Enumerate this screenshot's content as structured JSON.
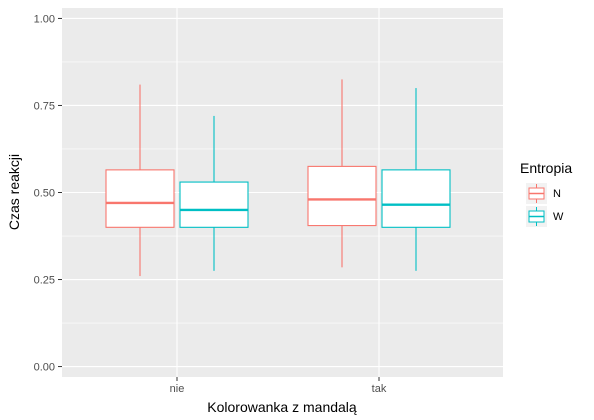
{
  "chart_data": {
    "type": "boxplot",
    "xlabel": "Kolorowanka z mandalą",
    "ylabel": "Czas reakcji",
    "categories": [
      "nie",
      "tak"
    ],
    "ylim": [
      -0.03,
      1.03
    ],
    "yticks": [
      "0.00",
      "0.25",
      "0.50",
      "0.75",
      "1.00"
    ],
    "ytick_values": [
      0,
      0.25,
      0.5,
      0.75,
      1.0
    ],
    "grid": true,
    "legend": {
      "title": "Entropia",
      "placement": "right"
    },
    "series": [
      {
        "name": "N",
        "color": "#F8766D",
        "boxes": [
          {
            "category": "nie",
            "whisker_low": 0.26,
            "q1": 0.4,
            "median": 0.47,
            "q3": 0.565,
            "whisker_high": 0.81
          },
          {
            "category": "tak",
            "whisker_low": 0.285,
            "q1": 0.405,
            "median": 0.48,
            "q3": 0.575,
            "whisker_high": 0.825
          }
        ]
      },
      {
        "name": "W",
        "color": "#00BFC4",
        "boxes": [
          {
            "category": "nie",
            "whisker_low": 0.275,
            "q1": 0.4,
            "median": 0.45,
            "q3": 0.53,
            "whisker_high": 0.72
          },
          {
            "category": "tak",
            "whisker_low": 0.275,
            "q1": 0.4,
            "median": 0.465,
            "q3": 0.565,
            "whisker_high": 0.8
          }
        ]
      }
    ]
  }
}
